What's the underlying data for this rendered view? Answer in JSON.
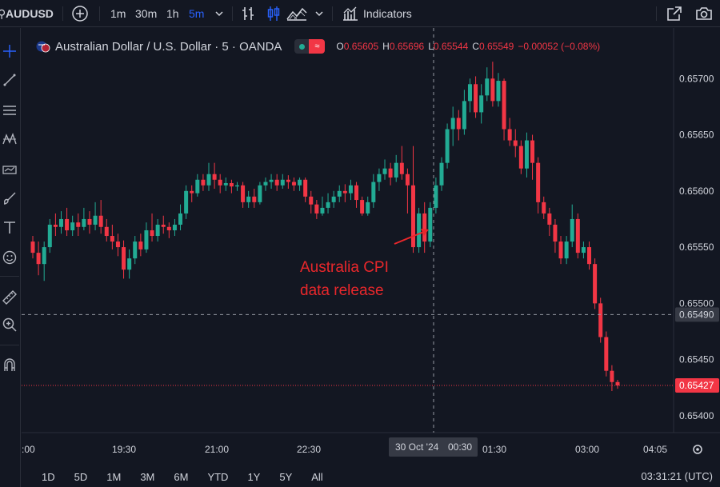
{
  "toolbar": {
    "symbol": "AUDUSD",
    "timeframes": [
      "1m",
      "30m",
      "1h",
      "5m"
    ],
    "active_timeframe": "5m",
    "indicators_label": "Indicators"
  },
  "legend": {
    "title": "Australian Dollar / U.S. Dollar · 5 · OANDA",
    "open_key": "O",
    "open": "0.65605",
    "high_key": "H",
    "high": "0.65696",
    "low_key": "L",
    "low": "0.65544",
    "close_key": "C",
    "close": "0.65549",
    "change": "−0.00052 (−0.08%)",
    "badge": "≈"
  },
  "annotation": {
    "line1": "Australia CPI",
    "line2": "data release"
  },
  "crosshair": {
    "date_label": "30 Oct '24",
    "time_label": "00:30",
    "price_label": "0.65490"
  },
  "last_price_label": "0.65427",
  "bottombar": {
    "ranges": [
      "1D",
      "5D",
      "1M",
      "3M",
      "6M",
      "YTD",
      "1Y",
      "5Y",
      "All"
    ],
    "clock": "03:31:21 (UTC)"
  },
  "colors": {
    "background": "#131722",
    "up": "#22ab94",
    "down": "#f23645",
    "accent": "#2962ff",
    "annotation": "#e8272b"
  },
  "chart_data": {
    "type": "candlestick",
    "title": "Australian Dollar / U.S. Dollar · 5 · OANDA",
    "ylim": [
      0.65385,
      0.65745
    ],
    "y_ticks": [
      "0.65700",
      "0.65650",
      "0.65600",
      "0.65550",
      "0.65500",
      "0.65450",
      "0.65400"
    ],
    "x_ticks": [
      ":00",
      "19:30",
      "21:00",
      "22:30",
      "01:30",
      "03:00",
      "04:05"
    ],
    "candles": [
      [
        0.65555,
        0.65545,
        0.6556,
        0.6554
      ],
      [
        0.65545,
        0.65535,
        0.65555,
        0.65525
      ],
      [
        0.65535,
        0.6555,
        0.65555,
        0.6552
      ],
      [
        0.6555,
        0.6557,
        0.65575,
        0.65545
      ],
      [
        0.6557,
        0.65568,
        0.6558,
        0.6556
      ],
      [
        0.65568,
        0.65575,
        0.65582,
        0.65562
      ],
      [
        0.65575,
        0.65565,
        0.65585,
        0.6556
      ],
      [
        0.65565,
        0.65572,
        0.65578,
        0.6556
      ],
      [
        0.65572,
        0.65568,
        0.6558,
        0.6556
      ],
      [
        0.65568,
        0.65575,
        0.65585,
        0.65565
      ],
      [
        0.65575,
        0.6557,
        0.65582,
        0.65562
      ],
      [
        0.6557,
        0.65578,
        0.6559,
        0.65565
      ],
      [
        0.65578,
        0.65568,
        0.65592,
        0.65562
      ],
      [
        0.65568,
        0.6556,
        0.65575,
        0.65555
      ],
      [
        0.6556,
        0.65555,
        0.6557,
        0.65548
      ],
      [
        0.65555,
        0.6555,
        0.65562,
        0.65542
      ],
      [
        0.6555,
        0.6553,
        0.65556,
        0.65522
      ],
      [
        0.6553,
        0.6554,
        0.65548,
        0.65522
      ],
      [
        0.6554,
        0.65555,
        0.6556,
        0.65535
      ],
      [
        0.65555,
        0.65548,
        0.65562,
        0.65542
      ],
      [
        0.65548,
        0.65565,
        0.65572,
        0.65545
      ],
      [
        0.65565,
        0.6556,
        0.6558,
        0.65555
      ],
      [
        0.6556,
        0.6557,
        0.65575,
        0.65555
      ],
      [
        0.6557,
        0.65568,
        0.65578,
        0.65562
      ],
      [
        0.65568,
        0.65565,
        0.65572,
        0.65558
      ],
      [
        0.65565,
        0.6557,
        0.65575,
        0.6556
      ],
      [
        0.6557,
        0.6558,
        0.65588,
        0.65565
      ],
      [
        0.6558,
        0.656,
        0.65605,
        0.65575
      ],
      [
        0.656,
        0.65598,
        0.65605,
        0.6559
      ],
      [
        0.65598,
        0.6561,
        0.65615,
        0.65595
      ],
      [
        0.6561,
        0.65605,
        0.65615,
        0.656
      ],
      [
        0.65605,
        0.65615,
        0.65625,
        0.656
      ],
      [
        0.65615,
        0.6561,
        0.65625,
        0.65602
      ],
      [
        0.6561,
        0.65605,
        0.65615,
        0.65598
      ],
      [
        0.65605,
        0.65607,
        0.65612,
        0.656
      ],
      [
        0.65607,
        0.65604,
        0.6561,
        0.65598
      ],
      [
        0.65604,
        0.65605,
        0.65608,
        0.656
      ],
      [
        0.65605,
        0.6559,
        0.65608,
        0.65585
      ],
      [
        0.6559,
        0.65595,
        0.656,
        0.65585
      ],
      [
        0.65595,
        0.6559,
        0.65602,
        0.65585
      ],
      [
        0.6559,
        0.65605,
        0.65608,
        0.65588
      ],
      [
        0.65605,
        0.65608,
        0.65612,
        0.656
      ],
      [
        0.65608,
        0.6561,
        0.65615,
        0.65602
      ],
      [
        0.6561,
        0.65605,
        0.65615,
        0.656
      ],
      [
        0.65605,
        0.6561,
        0.65615,
        0.65602
      ],
      [
        0.6561,
        0.65608,
        0.65614,
        0.65602
      ],
      [
        0.65608,
        0.65605,
        0.65612,
        0.656
      ],
      [
        0.65605,
        0.6561,
        0.65612,
        0.656
      ],
      [
        0.6561,
        0.65595,
        0.65612,
        0.6559
      ],
      [
        0.65595,
        0.65588,
        0.656,
        0.6558
      ],
      [
        0.65588,
        0.6558,
        0.65592,
        0.65575
      ],
      [
        0.6558,
        0.65585,
        0.65595,
        0.65578
      ],
      [
        0.65585,
        0.6559,
        0.65598,
        0.6558
      ],
      [
        0.6559,
        0.65595,
        0.656,
        0.65585
      ],
      [
        0.65595,
        0.656,
        0.65605,
        0.6559
      ],
      [
        0.656,
        0.65598,
        0.65606,
        0.6559
      ],
      [
        0.65598,
        0.65605,
        0.6561,
        0.65592
      ],
      [
        0.65605,
        0.65592,
        0.65608,
        0.65585
      ],
      [
        0.65592,
        0.6558,
        0.65595,
        0.65578
      ],
      [
        0.6558,
        0.6559,
        0.65595,
        0.65578
      ],
      [
        0.6559,
        0.65608,
        0.65615,
        0.65585
      ],
      [
        0.65608,
        0.65615,
        0.6562,
        0.656
      ],
      [
        0.65615,
        0.6562,
        0.65628,
        0.6561
      ],
      [
        0.6562,
        0.65612,
        0.65625,
        0.65605
      ],
      [
        0.65612,
        0.65625,
        0.65632,
        0.65608
      ],
      [
        0.65625,
        0.65615,
        0.6564,
        0.6561
      ],
      [
        0.65615,
        0.65605,
        0.6562,
        0.6558
      ],
      [
        0.65605,
        0.6555,
        0.6564,
        0.65545
      ],
      [
        0.6555,
        0.6558,
        0.65585,
        0.65545
      ],
      [
        0.6558,
        0.65555,
        0.6559,
        0.65545
      ],
      [
        0.65555,
        0.65585,
        0.6559,
        0.6555
      ],
      [
        0.65585,
        0.65605,
        0.65612,
        0.6558
      ],
      [
        0.65605,
        0.65625,
        0.6563,
        0.656
      ],
      [
        0.65625,
        0.65655,
        0.6566,
        0.6562
      ],
      [
        0.65655,
        0.65665,
        0.65675,
        0.6564
      ],
      [
        0.65665,
        0.65655,
        0.65672,
        0.65645
      ],
      [
        0.65655,
        0.6568,
        0.6569,
        0.6565
      ],
      [
        0.6568,
        0.65695,
        0.657,
        0.6567
      ],
      [
        0.65695,
        0.6567,
        0.65702,
        0.65665
      ],
      [
        0.6567,
        0.65685,
        0.65695,
        0.6566
      ],
      [
        0.65685,
        0.657,
        0.6571,
        0.6568
      ],
      [
        0.657,
        0.6568,
        0.65715,
        0.65675
      ],
      [
        0.6568,
        0.65698,
        0.65705,
        0.65675
      ],
      [
        0.65698,
        0.65655,
        0.657,
        0.65645
      ],
      [
        0.65655,
        0.65645,
        0.65665,
        0.6564
      ],
      [
        0.65645,
        0.6564,
        0.65655,
        0.6563
      ],
      [
        0.6564,
        0.6562,
        0.65645,
        0.65615
      ],
      [
        0.6562,
        0.65645,
        0.65652,
        0.65612
      ],
      [
        0.65645,
        0.65625,
        0.6565,
        0.6561
      ],
      [
        0.65625,
        0.6559,
        0.6563,
        0.6558
      ],
      [
        0.6559,
        0.6558,
        0.65595,
        0.65575
      ],
      [
        0.6558,
        0.6557,
        0.65585,
        0.6556
      ],
      [
        0.6557,
        0.65555,
        0.65575,
        0.65545
      ],
      [
        0.65555,
        0.6554,
        0.6556,
        0.65535
      ],
      [
        0.6554,
        0.65555,
        0.6556,
        0.65535
      ],
      [
        0.65555,
        0.65575,
        0.65588,
        0.6555
      ],
      [
        0.65575,
        0.65545,
        0.6558,
        0.6554
      ],
      [
        0.65545,
        0.6555,
        0.65555,
        0.6554
      ],
      [
        0.6555,
        0.65535,
        0.65555,
        0.6553
      ],
      [
        0.65535,
        0.655,
        0.6554,
        0.65495
      ],
      [
        0.655,
        0.6547,
        0.65505,
        0.65465
      ],
      [
        0.6547,
        0.6544,
        0.65475,
        0.65435
      ],
      [
        0.6544,
        0.6543,
        0.65445,
        0.65422
      ],
      [
        0.6543,
        0.65427,
        0.65432,
        0.65424
      ]
    ]
  }
}
